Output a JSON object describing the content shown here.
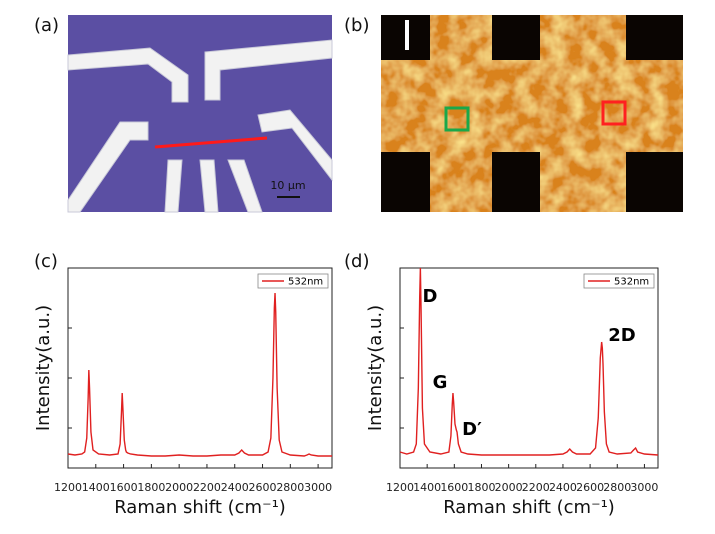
{
  "panel_labels": [
    "(a)",
    "(b)",
    "(c)",
    "(d)"
  ],
  "scale_bar": "10 μm",
  "chart_data": [
    {
      "type": "line",
      "xlabel": "Raman shift (cm⁻¹)",
      "ylabel": "Intensity(a.u.)",
      "xlim": [
        1200,
        3100
      ],
      "ylim": [
        0,
        100
      ],
      "xticks": [
        1200,
        1400,
        1600,
        1800,
        2000,
        2200,
        2400,
        2600,
        2800,
        3000
      ],
      "legend": "upper right",
      "x": [
        1200,
        1250,
        1300,
        1320,
        1335,
        1345,
        1350,
        1355,
        1365,
        1380,
        1420,
        1500,
        1560,
        1575,
        1585,
        1590,
        1595,
        1605,
        1615,
        1620,
        1630,
        1650,
        1700,
        1800,
        1900,
        2000,
        2100,
        2200,
        2300,
        2400,
        2430,
        2450,
        2470,
        2500,
        2600,
        2640,
        2660,
        2675,
        2685,
        2690,
        2695,
        2705,
        2720,
        2740,
        2800,
        2900,
        2920,
        2935,
        2950,
        3000,
        3100
      ],
      "series": [
        {
          "name": "532nm",
          "color": "#e02020",
          "values": [
            7,
            6.5,
            7,
            8,
            15,
            35,
            49,
            40,
            18,
            9,
            7,
            6.5,
            7,
            12,
            28,
            37.5,
            30,
            14,
            9,
            8,
            7.5,
            7,
            6.5,
            6,
            6,
            6.5,
            6,
            6,
            6.5,
            6.5,
            7.5,
            9,
            7.5,
            6.5,
            6.5,
            8,
            15,
            45,
            80,
            87.5,
            78,
            40,
            14,
            8,
            6.5,
            6,
            6.5,
            7,
            6.5,
            6,
            6
          ]
        }
      ]
    },
    {
      "type": "line",
      "xlabel": "Raman shift (cm⁻¹)",
      "ylabel": "Intensity(a.u.)",
      "xlim": [
        1200,
        3100
      ],
      "ylim": [
        0,
        100
      ],
      "xticks": [
        1200,
        1400,
        1600,
        1800,
        2000,
        2200,
        2400,
        2600,
        2800,
        3000
      ],
      "legend": "upper right",
      "annotations": [
        "D",
        "G",
        "D′",
        "2D"
      ],
      "x": [
        1200,
        1250,
        1300,
        1320,
        1335,
        1345,
        1350,
        1355,
        1365,
        1380,
        1420,
        1500,
        1560,
        1575,
        1585,
        1590,
        1595,
        1605,
        1615,
        1620,
        1630,
        1650,
        1700,
        1800,
        1900,
        2000,
        2100,
        2200,
        2300,
        2400,
        2430,
        2450,
        2470,
        2500,
        2600,
        2640,
        2660,
        2675,
        2685,
        2690,
        2695,
        2705,
        2720,
        2740,
        2800,
        2900,
        2920,
        2935,
        2950,
        3000,
        3100
      ],
      "series": [
        {
          "name": "532nm",
          "color": "#e02020",
          "values": [
            8,
            7,
            8,
            12,
            40,
            85,
            100,
            80,
            30,
            12,
            8,
            7,
            8,
            16,
            32,
            37.5,
            33,
            22,
            19,
            18,
            12,
            8,
            7,
            6.5,
            6.5,
            6.5,
            6.5,
            6.5,
            6.5,
            7,
            8,
            9.5,
            8,
            7,
            7,
            10,
            25,
            55,
            63,
            60,
            52,
            28,
            12,
            8,
            7,
            7.5,
            9,
            10,
            8,
            7,
            6.5
          ]
        }
      ]
    }
  ]
}
